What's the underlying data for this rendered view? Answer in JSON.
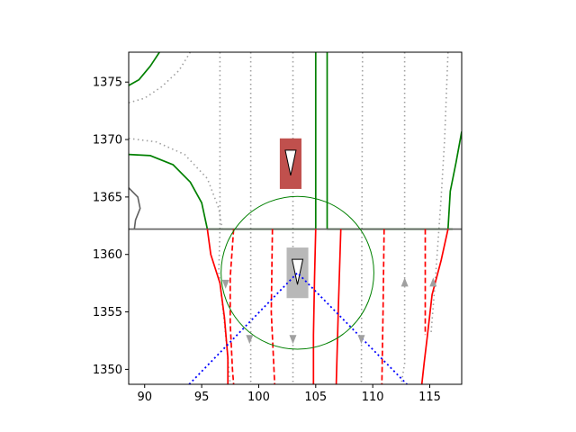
{
  "chart_data": {
    "type": "scatter",
    "title": "",
    "xlabel": "",
    "ylabel": "",
    "xlim": [
      88.6,
      117.8
    ],
    "ylim": [
      1348.7,
      1377.6
    ],
    "xticks": [
      90,
      95,
      100,
      105,
      110,
      115
    ],
    "yticks": [
      1350,
      1355,
      1360,
      1365,
      1370,
      1375
    ],
    "xtick_labels": [
      "90",
      "95",
      "100",
      "105",
      "110",
      "115"
    ],
    "ytick_labels": [
      "1350",
      "1355",
      "1360",
      "1365",
      "1370",
      "1375"
    ],
    "grid": false,
    "colors": {
      "road_edge": "#008000",
      "lane_boundary": "#ff0000",
      "centerline": "#a0a0a0",
      "stop_line": "#606060",
      "fov": "#0000ff",
      "ego_box": "#b8b8b8",
      "agent_box": "#c0504d"
    },
    "elements": {
      "ego_vehicle": {
        "center": [
          103.4,
          1358.4
        ],
        "width": 1.9,
        "length": 4.4
      },
      "agent_vehicle": {
        "center": [
          102.8,
          1367.9
        ],
        "width": 1.9,
        "length": 4.4
      },
      "range_circle": {
        "center": [
          103.4,
          1358.4
        ],
        "radius": 6.7
      },
      "fov_lines": [
        [
          [
            93.9,
            1348.7
          ],
          [
            103.4,
            1358.4
          ],
          [
            113.0,
            1348.7
          ]
        ]
      ],
      "stop_line": [
        [
          88.6,
          1362.2
        ],
        [
          117.8,
          1362.2
        ]
      ],
      "road_edges": [
        [
          [
            88.6,
            1374.7
          ],
          [
            89.5,
            1375.2
          ],
          [
            90.5,
            1376.4
          ],
          [
            91.3,
            1377.6
          ]
        ],
        [
          [
            88.6,
            1368.7
          ],
          [
            90.5,
            1368.6
          ],
          [
            92.5,
            1367.8
          ],
          [
            94.0,
            1366.3
          ],
          [
            95.0,
            1364.5
          ],
          [
            95.5,
            1362.2
          ]
        ],
        [
          [
            105.0,
            1362.2
          ],
          [
            105.0,
            1377.6
          ]
        ],
        [
          [
            106.0,
            1377.6
          ],
          [
            106.0,
            1362.2
          ],
          [
            117.0,
            1362.2
          ]
        ],
        [
          [
            117.8,
            1370.7
          ],
          [
            117.3,
            1368.0
          ],
          [
            116.8,
            1365.5
          ],
          [
            116.6,
            1362.2
          ]
        ],
        [
          [
            105.0,
            1362.2
          ],
          [
            95.5,
            1362.2
          ]
        ]
      ],
      "stop_line_curve": [
        [
          88.6,
          1365.8
        ],
        [
          89.4,
          1365.0
        ],
        [
          89.6,
          1364.0
        ],
        [
          89.2,
          1363.0
        ],
        [
          89.1,
          1362.2
        ]
      ],
      "lane_solid": [
        [
          [
            95.5,
            1362.2
          ],
          [
            95.8,
            1360.0
          ],
          [
            96.6,
            1357.5
          ],
          [
            97.0,
            1354.5
          ],
          [
            97.3,
            1351.0
          ],
          [
            97.3,
            1348.7
          ]
        ],
        [
          [
            105.0,
            1362.2
          ],
          [
            104.9,
            1358.0
          ],
          [
            104.8,
            1353.0
          ],
          [
            104.8,
            1348.7
          ]
        ],
        [
          [
            107.2,
            1362.2
          ],
          [
            107.0,
            1356.0
          ],
          [
            106.8,
            1348.7
          ]
        ],
        [
          [
            116.6,
            1362.2
          ],
          [
            116.0,
            1359.5
          ],
          [
            115.2,
            1356.5
          ],
          [
            114.8,
            1353.0
          ],
          [
            114.5,
            1350.5
          ],
          [
            114.3,
            1348.7
          ]
        ]
      ],
      "lane_dashed": [
        [
          [
            97.8,
            1362.2
          ],
          [
            97.5,
            1358.0
          ],
          [
            97.5,
            1354.0
          ],
          [
            97.7,
            1350.0
          ],
          [
            97.8,
            1348.7
          ]
        ],
        [
          [
            101.2,
            1362.2
          ],
          [
            101.1,
            1355.0
          ],
          [
            101.4,
            1348.7
          ]
        ],
        [
          [
            111.0,
            1362.2
          ],
          [
            110.9,
            1355.0
          ],
          [
            110.8,
            1348.7
          ]
        ],
        [
          [
            114.6,
            1362.2
          ],
          [
            114.6,
            1353.0
          ]
        ]
      ],
      "centerlines_dotted": [
        [
          [
            88.6,
            1373.2
          ],
          [
            90.0,
            1373.6
          ],
          [
            91.5,
            1374.6
          ],
          [
            93.0,
            1376.0
          ],
          [
            94.0,
            1377.6
          ]
        ],
        [
          [
            88.6,
            1370.1
          ],
          [
            91.0,
            1369.8
          ],
          [
            93.5,
            1368.7
          ],
          [
            95.5,
            1366.6
          ],
          [
            96.5,
            1364.0
          ],
          [
            96.8,
            1362.2
          ]
        ],
        [
          [
            96.6,
            1377.6
          ],
          [
            96.6,
            1362.2
          ],
          [
            96.5,
            1358.5
          ],
          [
            97.0,
            1354.0
          ],
          [
            97.5,
            1348.7
          ]
        ],
        [
          [
            99.3,
            1377.6
          ],
          [
            99.3,
            1348.7
          ]
        ],
        [
          [
            103.0,
            1377.6
          ],
          [
            103.0,
            1348.7
          ]
        ],
        [
          [
            109.1,
            1377.6
          ],
          [
            109.0,
            1348.7
          ]
        ],
        [
          [
            112.8,
            1377.6
          ],
          [
            112.8,
            1350.5
          ],
          [
            112.5,
            1348.7
          ]
        ],
        [
          [
            116.6,
            1377.6
          ],
          [
            116.3,
            1370.0
          ],
          [
            116.0,
            1365.0
          ],
          [
            115.8,
            1362.2
          ],
          [
            115.5,
            1358.0
          ],
          [
            115.1,
            1353.0
          ]
        ]
      ],
      "arrows": [
        {
          "x": 97.1,
          "y": 1357.4,
          "dir": "down"
        },
        {
          "x": 99.2,
          "y": 1352.6,
          "dir": "down"
        },
        {
          "x": 103.0,
          "y": 1352.6,
          "dir": "down"
        },
        {
          "x": 109.0,
          "y": 1352.6,
          "dir": "down"
        },
        {
          "x": 112.8,
          "y": 1357.6,
          "dir": "up"
        },
        {
          "x": 115.3,
          "y": 1357.6,
          "dir": "up"
        }
      ]
    }
  }
}
